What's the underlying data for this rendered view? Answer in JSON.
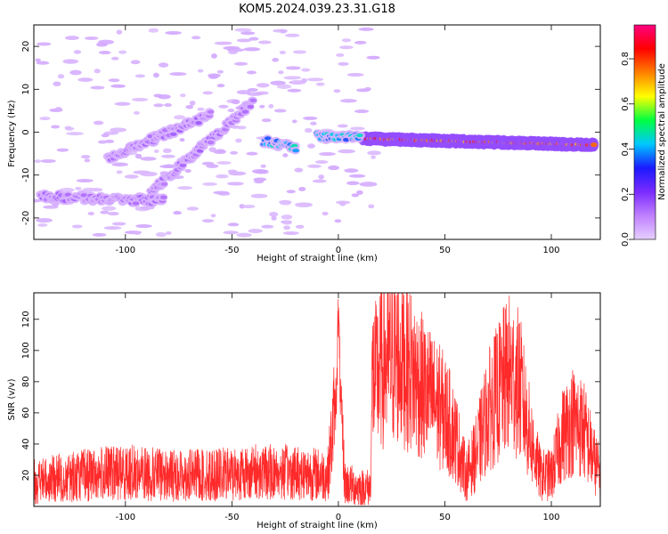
{
  "figure": {
    "title": "KOM5.2024.039.23.31.G18"
  },
  "chart_data": [
    {
      "type": "heatmap",
      "title": "KOM5.2024.039.23.31.G18",
      "xlabel": "Height of straight line (km)",
      "ylabel": "Frequency (Hz)",
      "xlim": [
        -143,
        123
      ],
      "ylim": [
        -25,
        25
      ],
      "x_ticks": [
        -100,
        -50,
        0,
        50,
        100
      ],
      "y_ticks": [
        -20,
        -10,
        0,
        10,
        20
      ],
      "colorbar": {
        "label": "Normalized spectral amplitude",
        "range": [
          0,
          0.95
        ],
        "ticks": [
          0.0,
          0.2,
          0.4,
          0.6,
          0.8
        ],
        "colormap": [
          "#ffffff",
          "#e6cfff",
          "#bf80ff",
          "#7a2cff",
          "#1a1aff",
          "#00c8ff",
          "#00ff40",
          "#ffff00",
          "#ff8000",
          "#ff0000",
          "#ff0080"
        ]
      },
      "features": [
        {
          "label": "steady trace",
          "x": [
            12,
            120
          ],
          "y": [
            -1.5,
            -3.0
          ],
          "amplitude": 0.85
        },
        {
          "label": "segment",
          "x": [
            -10,
            10
          ],
          "y": [
            -1,
            -1
          ],
          "amplitude": 0.45
        },
        {
          "label": "segment",
          "x": [
            -35,
            -20
          ],
          "y": [
            -2,
            -3.5
          ],
          "amplitude": 0.45
        },
        {
          "label": "rising streak",
          "x": [
            -108,
            -60
          ],
          "y": [
            -6,
            4
          ],
          "amplitude": 0.15
        },
        {
          "label": "rising streak",
          "x": [
            -88,
            -40
          ],
          "y": [
            -14,
            7
          ],
          "amplitude": 0.15
        },
        {
          "label": "low band",
          "x": [
            -140,
            -82
          ],
          "y": [
            -15,
            -16
          ],
          "amplitude": 0.15
        }
      ]
    },
    {
      "type": "line",
      "xlabel": "Height of straight line (km)",
      "ylabel": "SNR (v/v)",
      "xlim": [
        -143,
        123
      ],
      "ylim": [
        0,
        137
      ],
      "x_ticks": [
        -100,
        -50,
        0,
        50,
        100
      ],
      "y_ticks": [
        20,
        40,
        60,
        80,
        100,
        120
      ],
      "line_color": "#ff2a2a",
      "envelope": {
        "x": [
          -143,
          -120,
          -100,
          -80,
          -60,
          -40,
          -20,
          -5,
          -1,
          0,
          1,
          3,
          5,
          10,
          15,
          16,
          17,
          20,
          25,
          30,
          40,
          50,
          55,
          60,
          65,
          70,
          80,
          85,
          90,
          95,
          100,
          105,
          110,
          115,
          120,
          123
        ],
        "mean": [
          16,
          20,
          22,
          20,
          20,
          22,
          22,
          20,
          70,
          125,
          70,
          15,
          14,
          12,
          12,
          85,
          80,
          90,
          95,
          95,
          75,
          60,
          45,
          20,
          35,
          60,
          85,
          78,
          45,
          20,
          20,
          45,
          55,
          50,
          30,
          20
        ]
      }
    }
  ]
}
